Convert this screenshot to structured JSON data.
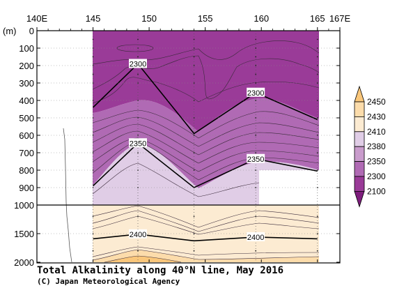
{
  "chart_data": {
    "type": "contour",
    "title": "Total Alkalinity along 40°N line, May 2016",
    "credit": "(C) Japan Meteorological Agency",
    "x_axis": {
      "ticks": [
        140,
        145,
        150,
        155,
        160,
        165,
        167
      ],
      "tick_labels": [
        "140E",
        "145",
        "150",
        "155",
        "160",
        "165",
        "167E"
      ],
      "range": [
        140,
        167
      ]
    },
    "y_axis": {
      "unit_label": "(m)",
      "upper_ticks": [
        0,
        100,
        200,
        300,
        400,
        500,
        600,
        700,
        800,
        900,
        1000
      ],
      "lower_ticks": [
        1000,
        1500,
        2000
      ],
      "upper_range": [
        0,
        1000
      ],
      "lower_range": [
        1000,
        2000
      ],
      "tick_labels": [
        "0",
        "100",
        "200",
        "300",
        "400",
        "500",
        "600",
        "700",
        "800",
        "900",
        "1000",
        "1500",
        "2000"
      ]
    },
    "stations_lon": [
      145,
      149,
      154,
      159.5,
      165
    ],
    "colorbar": {
      "levels": [
        2100,
        2300,
        2350,
        2380,
        2410,
        2430,
        2450
      ],
      "labels": [
        "2100",
        "2300",
        "2350",
        "2380",
        "2410",
        "2430",
        "2450"
      ],
      "colors": [
        "#9a3b98",
        "#b06ab4",
        "#c99ccc",
        "#e0cde6",
        "#fcebd2",
        "#fcdcab",
        "#fac77b"
      ]
    },
    "contours": [
      {
        "value": 2300,
        "major": true,
        "label": "2300",
        "depths": [
          440,
          190,
          590,
          355,
          510
        ]
      },
      {
        "value": 2350,
        "major": true,
        "label": "2350",
        "depths": [
          890,
          645,
          900,
          735,
          805
        ]
      },
      {
        "value": 2400,
        "major": true,
        "label": "2400",
        "depths": [
          1590,
          1510,
          1625,
          1560,
          1590
        ]
      }
    ],
    "contour_labels": [
      "2300",
      "2300",
      "2350",
      "2350",
      "2400",
      "2400"
    ]
  }
}
